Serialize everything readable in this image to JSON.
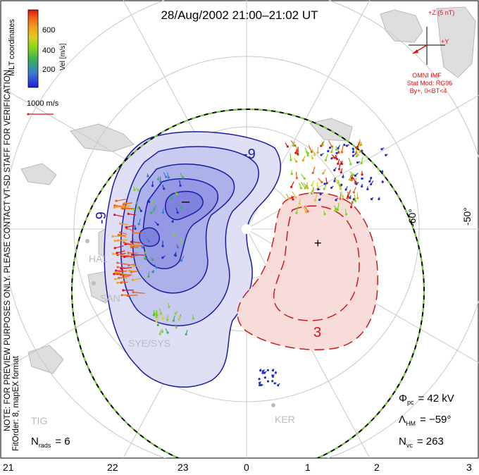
{
  "title": "28/Aug/2002 21:00–21:02 UT",
  "colorbar": {
    "ticks": [
      "600",
      "400",
      "200"
    ],
    "label": "Vel [m/s]",
    "stops": [
      "#2020d8",
      "#3a7ad0",
      "#3cb05a",
      "#7ed320",
      "#d8d020",
      "#f0a020",
      "#f06010",
      "#e01010"
    ]
  },
  "coord_label": "MLT coordinates",
  "ref_vector": {
    "label": "1000 m/s"
  },
  "imf": {
    "z_label": "+Z (5 nT)",
    "y_label": "+Y",
    "omni": "OMNI IMF",
    "stat_mod": "Stat Mod: RG96",
    "cond": "By+, 0<BT<4"
  },
  "lat_labels": [
    "-60°",
    "-50°"
  ],
  "side_note": "NOTE: FOR PREVIEW PURPOSES ONLY. PLEASE CONTACT VT-SD STAFF FOR VERIFICATION.",
  "fit_order": "FitOrder: 8, mapEX format",
  "contour_labels": {
    "neg": "-9",
    "neg2": "-9",
    "pos": "3"
  },
  "markers": {
    "minus": "–",
    "plus": "+"
  },
  "stations": [
    "HAL",
    "SAN",
    "SYE/SYS",
    "TIG",
    "KER"
  ],
  "stats": {
    "phi_pc_label": "Φ",
    "phi_pc_sub": "pc",
    "phi_pc_value": "= 42 kV",
    "lambda_label": "Λ",
    "lambda_sub": "HM",
    "lambda_value": "= −59°",
    "nvc_label": "N",
    "nvc_sub": "vc",
    "nvc_value": "= 263",
    "nrads_label": "N",
    "nrads_sub": "rads",
    "nrads_value": "= 6"
  },
  "mlt_ticks": [
    "21",
    "22",
    "23",
    "0",
    "1",
    "2",
    "3"
  ],
  "colors": {
    "neg_fill": "#3a3ad8",
    "pos_fill": "#e07a70",
    "neg_line": "#1a1aa8",
    "pos_line": "#d01818",
    "hmb": "#000000",
    "hmb_dash": "#7ad040",
    "land": "#d8d8d8"
  }
}
